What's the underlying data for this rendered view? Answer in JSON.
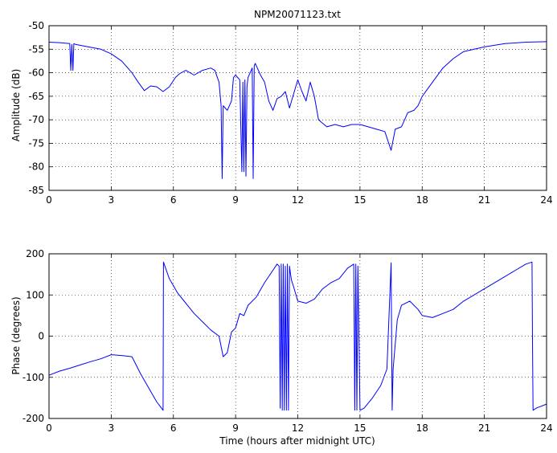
{
  "chart_data": [
    {
      "type": "line",
      "title": "NPM20071123.txt",
      "xlabel": "",
      "ylabel": "Amplitude (dB)",
      "xlim": [
        0,
        24
      ],
      "ylim": [
        -85,
        -50
      ],
      "grid": true,
      "xticks": [
        "0",
        "3",
        "6",
        "9",
        "12",
        "15",
        "18",
        "21",
        "24"
      ],
      "yticks": [
        "-85",
        "-80",
        "-75",
        "-70",
        "-65",
        "-60",
        "-55",
        "-50"
      ],
      "line_color": "#0000ff",
      "series": [
        {
          "x": [
            0,
            0.5,
            1.0,
            1.05,
            1.1,
            1.15,
            1.2,
            1.3,
            2.0,
            2.5,
            3.0,
            3.5,
            4.0,
            4.3,
            4.6,
            4.9,
            5.2,
            5.5,
            5.8,
            6.1,
            6.3,
            6.6,
            7.0,
            7.4,
            7.8,
            8.0,
            8.2,
            8.3,
            8.35,
            8.4,
            8.5,
            8.6,
            8.8,
            8.9,
            9.0,
            9.2,
            9.3,
            9.35,
            9.4,
            9.45,
            9.5,
            9.55,
            9.6,
            9.7,
            9.8,
            9.85,
            9.9,
            9.95,
            10.0,
            10.2,
            10.4,
            10.6,
            10.8,
            11.0,
            11.2,
            11.4,
            11.6,
            11.8,
            12.0,
            12.2,
            12.4,
            12.6,
            12.8,
            13.0,
            13.4,
            13.8,
            14.2,
            14.6,
            15.0,
            15.4,
            15.8,
            16.2,
            16.5,
            16.7,
            17.0,
            17.3,
            17.6,
            17.8,
            18.0,
            18.5,
            19.0,
            19.5,
            20.0,
            21.0,
            22.0,
            23.0,
            24.0
          ],
          "y": [
            -53.5,
            -53.6,
            -53.8,
            -59.5,
            -54.0,
            -59.5,
            -53.8,
            -54.0,
            -54.6,
            -55.0,
            -56.0,
            -57.5,
            -60.0,
            -62.0,
            -63.8,
            -62.8,
            -63.0,
            -64.0,
            -63.0,
            -61.0,
            -60.2,
            -59.5,
            -60.5,
            -59.5,
            -59.0,
            -59.5,
            -62.0,
            -67.0,
            -82.5,
            -67.0,
            -67.5,
            -68.0,
            -66.0,
            -61.0,
            -60.5,
            -61.5,
            -81.0,
            -62.0,
            -81.0,
            -61.5,
            -82.0,
            -63.0,
            -61.0,
            -60.0,
            -59.0,
            -82.5,
            -58.5,
            -58.0,
            -58.5,
            -60.5,
            -62.0,
            -66.0,
            -68.0,
            -65.5,
            -65.0,
            -64.0,
            -67.5,
            -64.5,
            -61.5,
            -64.0,
            -66.0,
            -62.0,
            -65.0,
            -70.0,
            -71.5,
            -71.0,
            -71.5,
            -71.0,
            -71.0,
            -71.5,
            -72.0,
            -72.5,
            -76.5,
            -72.0,
            -71.5,
            -68.5,
            -68.0,
            -67.0,
            -65.0,
            -62.0,
            -59.0,
            -57.0,
            -55.5,
            -54.5,
            -53.8,
            -53.5,
            -53.4
          ]
        }
      ]
    },
    {
      "type": "line",
      "title": "",
      "xlabel": "Time (hours after midnight UTC)",
      "ylabel": "Phase (degrees)",
      "xlim": [
        0,
        24
      ],
      "ylim": [
        -200,
        200
      ],
      "grid": true,
      "xticks": [
        "0",
        "3",
        "6",
        "9",
        "12",
        "15",
        "18",
        "21",
        "24"
      ],
      "yticks": [
        "-200",
        "-100",
        "0",
        "100",
        "200"
      ],
      "line_color": "#0000ff",
      "series": [
        {
          "x": [
            0,
            0.5,
            1.0,
            1.5,
            2.0,
            2.5,
            3.0,
            3.5,
            4.0,
            4.4,
            4.8,
            5.2,
            5.5,
            5.52,
            5.8,
            6.2,
            6.6,
            7.0,
            7.4,
            7.8,
            8.2,
            8.4,
            8.6,
            8.8,
            9.0,
            9.2,
            9.4,
            9.6,
            10.0,
            10.4,
            10.8,
            11.0,
            11.1,
            11.15,
            11.2,
            11.25,
            11.3,
            11.35,
            11.4,
            11.45,
            11.5,
            11.55,
            11.6,
            11.65,
            11.7,
            11.8,
            12.0,
            12.4,
            12.8,
            13.2,
            13.6,
            14.0,
            14.4,
            14.7,
            14.75,
            14.8,
            14.85,
            14.9,
            15.0,
            15.2,
            15.6,
            16.0,
            16.3,
            16.5,
            16.55,
            16.6,
            16.8,
            17.0,
            17.4,
            17.8,
            18.0,
            18.5,
            19.0,
            19.5,
            20.0,
            20.5,
            21.0,
            21.5,
            22.0,
            22.5,
            23.0,
            23.3,
            23.32,
            23.35,
            23.5,
            24.0
          ],
          "y": [
            -95,
            -85,
            -78,
            -70,
            -62,
            -55,
            -45,
            -47,
            -50,
            -90,
            -125,
            -160,
            -180,
            180,
            140,
            105,
            80,
            55,
            35,
            15,
            0,
            -50,
            -40,
            10,
            20,
            55,
            50,
            75,
            95,
            130,
            160,
            175,
            170,
            -175,
            175,
            -180,
            175,
            -180,
            170,
            -180,
            175,
            -180,
            170,
            150,
            135,
            120,
            85,
            80,
            90,
            115,
            130,
            140,
            165,
            175,
            -180,
            175,
            -180,
            170,
            -180,
            -175,
            -150,
            -120,
            -80,
            178,
            -180,
            -80,
            40,
            75,
            85,
            65,
            50,
            45,
            55,
            65,
            85,
            100,
            115,
            130,
            145,
            160,
            175,
            180,
            -10,
            -180,
            -175,
            -165
          ]
        }
      ]
    }
  ]
}
